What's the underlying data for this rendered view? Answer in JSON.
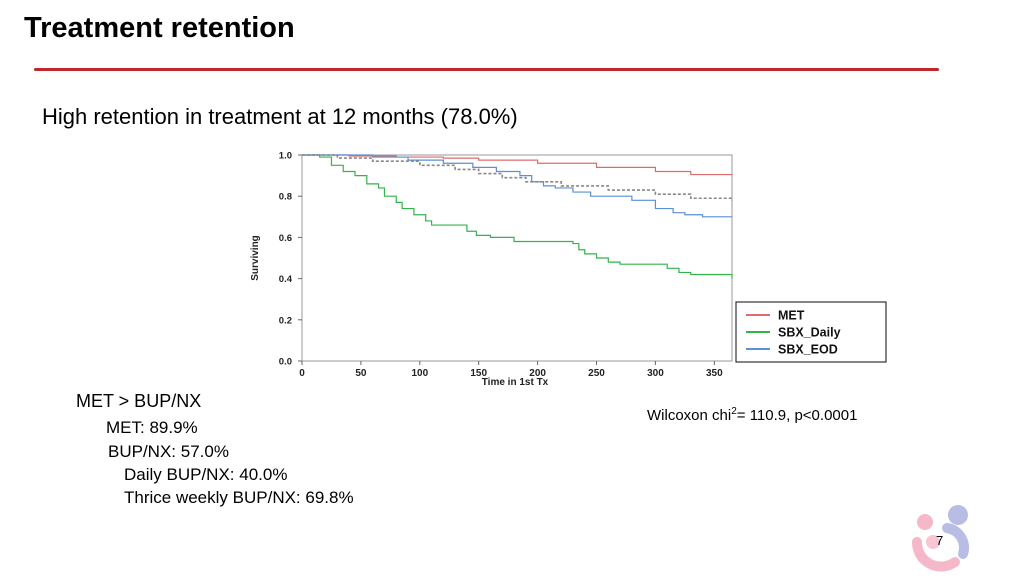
{
  "slide": {
    "title": "Treatment retention",
    "subtitle": "High retention in treatment at 12 months (78.0%)",
    "page_number": "7",
    "accent_color": "#c0262d"
  },
  "stats": {
    "heading": "MET > BUP/NX",
    "met": "MET: 89.9%",
    "bupnx": "BUP/NX: 57.0%",
    "daily": "Daily BUP/NX: 40.0%",
    "thrice": "Thrice weekly BUP/NX: 69.8%"
  },
  "wilcoxon": {
    "prefix": "Wilcoxon chi",
    "sup": "2",
    "suffix": "= 110.9, p<0.0001"
  },
  "chart_data": {
    "type": "line",
    "step": true,
    "title": "",
    "xlabel": "Time in 1st Tx",
    "ylabel": "Surviving",
    "xlim": [
      0,
      365
    ],
    "ylim": [
      0,
      1.0
    ],
    "x_ticks": [
      0,
      50,
      100,
      150,
      200,
      250,
      300,
      350
    ],
    "y_ticks": [
      "0.0",
      "0.2",
      "0.4",
      "0.6",
      "0.8",
      "1.0"
    ],
    "legend_position": "bottom-right",
    "series": [
      {
        "name": "MET",
        "color": "#e06b6b",
        "dash": false,
        "points": [
          [
            0,
            1.0
          ],
          [
            40,
            0.995
          ],
          [
            80,
            0.99
          ],
          [
            120,
            0.985
          ],
          [
            150,
            0.975
          ],
          [
            200,
            0.96
          ],
          [
            250,
            0.94
          ],
          [
            300,
            0.92
          ],
          [
            330,
            0.905
          ],
          [
            365,
            0.9
          ]
        ]
      },
      {
        "name": "SBX_Daily",
        "color": "#33b44a",
        "dash": false,
        "points": [
          [
            0,
            1.0
          ],
          [
            15,
            0.99
          ],
          [
            25,
            0.95
          ],
          [
            35,
            0.92
          ],
          [
            45,
            0.9
          ],
          [
            55,
            0.86
          ],
          [
            65,
            0.84
          ],
          [
            70,
            0.8
          ],
          [
            80,
            0.77
          ],
          [
            85,
            0.74
          ],
          [
            95,
            0.71
          ],
          [
            105,
            0.68
          ],
          [
            110,
            0.66
          ],
          [
            130,
            0.66
          ],
          [
            140,
            0.63
          ],
          [
            148,
            0.61
          ],
          [
            160,
            0.6
          ],
          [
            175,
            0.6
          ],
          [
            180,
            0.58
          ],
          [
            200,
            0.58
          ],
          [
            230,
            0.57
          ],
          [
            235,
            0.54
          ],
          [
            240,
            0.52
          ],
          [
            250,
            0.5
          ],
          [
            260,
            0.48
          ],
          [
            270,
            0.47
          ],
          [
            300,
            0.47
          ],
          [
            310,
            0.45
          ],
          [
            320,
            0.43
          ],
          [
            330,
            0.42
          ],
          [
            365,
            0.4
          ]
        ]
      },
      {
        "name": "SBX_EOD",
        "color": "#5b8fd6",
        "dash": false,
        "points": [
          [
            0,
            1.0
          ],
          [
            60,
            0.99
          ],
          [
            90,
            0.975
          ],
          [
            120,
            0.96
          ],
          [
            145,
            0.94
          ],
          [
            165,
            0.92
          ],
          [
            185,
            0.9
          ],
          [
            195,
            0.87
          ],
          [
            205,
            0.85
          ],
          [
            215,
            0.84
          ],
          [
            230,
            0.82
          ],
          [
            245,
            0.8
          ],
          [
            265,
            0.8
          ],
          [
            280,
            0.78
          ],
          [
            300,
            0.74
          ],
          [
            315,
            0.72
          ],
          [
            325,
            0.71
          ],
          [
            340,
            0.7
          ],
          [
            365,
            0.7
          ]
        ]
      },
      {
        "name": "Overall",
        "color": "#888888",
        "dash": true,
        "in_legend": false,
        "points": [
          [
            0,
            1.0
          ],
          [
            30,
            0.985
          ],
          [
            60,
            0.97
          ],
          [
            100,
            0.95
          ],
          [
            130,
            0.93
          ],
          [
            150,
            0.91
          ],
          [
            170,
            0.89
          ],
          [
            190,
            0.87
          ],
          [
            220,
            0.85
          ],
          [
            260,
            0.83
          ],
          [
            300,
            0.81
          ],
          [
            330,
            0.79
          ],
          [
            365,
            0.78
          ]
        ]
      }
    ]
  }
}
